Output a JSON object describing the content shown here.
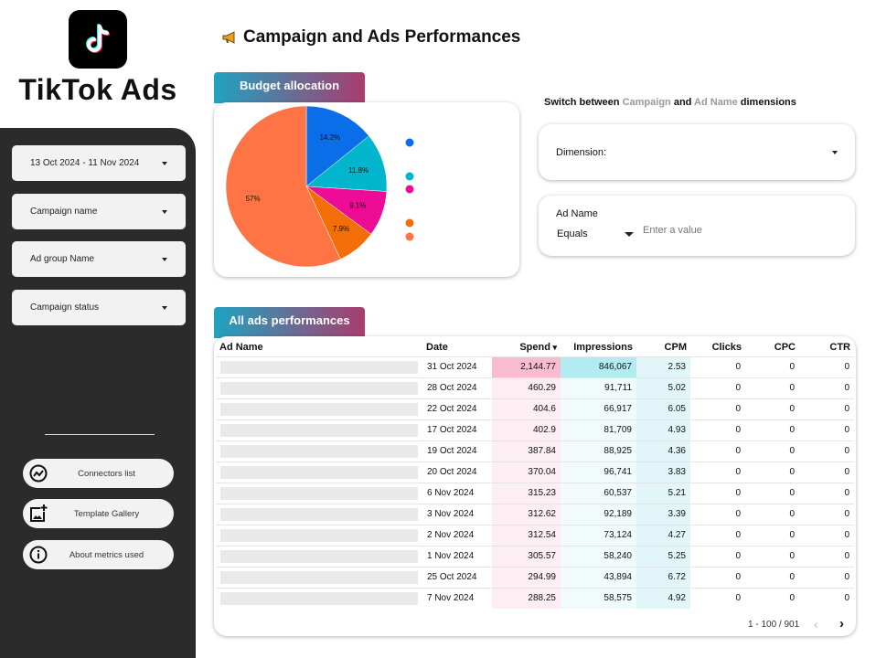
{
  "brand": {
    "name": "TikTok Ads",
    "logo_icon": "tiktok-logo-icon"
  },
  "sidebar": {
    "filters": [
      {
        "label": "13 Oct 2024 - 11 Nov 2024"
      },
      {
        "label": "Campaign name"
      },
      {
        "label": "Ad group Name"
      },
      {
        "label": "Campaign status"
      }
    ],
    "links": [
      {
        "label": "Connectors list",
        "icon": "chart-circle-icon"
      },
      {
        "label": "Template Gallery",
        "icon": "add-image-icon"
      },
      {
        "label": "About metrics used",
        "icon": "info-icon"
      }
    ]
  },
  "header": {
    "title": "Campaign and Ads Performances",
    "icon": "megaphone-icon"
  },
  "budget": {
    "tab_label": "Budget allocation"
  },
  "chart_data": {
    "type": "pie",
    "values": [
      14.2,
      11.8,
      9.1,
      7.9,
      57
    ],
    "labels": [
      "14.2%",
      "11.8%",
      "9.1%",
      "7.9%",
      "57%"
    ],
    "colors": [
      "#0a6ee8",
      "#00b5cc",
      "#ee0b96",
      "#f46d07",
      "#fe7444"
    ],
    "legend": "right"
  },
  "switcher": {
    "prefix": "Switch between ",
    "opt1": "Campaign",
    "mid": " and ",
    "opt2": "Ad Name",
    "suffix": " dimensions",
    "dimension_label": "Dimension:",
    "adname_label": "Ad Name",
    "operator": "Equals",
    "placeholder": "Enter a value"
  },
  "table": {
    "tab_label": "All ads performances",
    "columns": [
      "Ad Name",
      "Date",
      "Spend",
      "Impressions",
      "CPM",
      "Clicks",
      "CPC",
      "CTR"
    ],
    "rows": [
      [
        "",
        "31 Oct 2024",
        "2,144.77",
        "846,067",
        "2.53",
        "0",
        "0",
        "0"
      ],
      [
        "",
        "28 Oct 2024",
        "460.29",
        "91,711",
        "5.02",
        "0",
        "0",
        "0"
      ],
      [
        "",
        "22 Oct 2024",
        "404.6",
        "66,917",
        "6.05",
        "0",
        "0",
        "0"
      ],
      [
        "",
        "17 Oct 2024",
        "402.9",
        "81,709",
        "4.93",
        "0",
        "0",
        "0"
      ],
      [
        "",
        "19 Oct 2024",
        "387.84",
        "88,925",
        "4.36",
        "0",
        "0",
        "0"
      ],
      [
        "",
        "20 Oct 2024",
        "370.04",
        "96,741",
        "3.83",
        "0",
        "0",
        "0"
      ],
      [
        "",
        "6 Nov 2024",
        "315.23",
        "60,537",
        "5.21",
        "0",
        "0",
        "0"
      ],
      [
        "",
        "3 Nov 2024",
        "312.62",
        "92,189",
        "3.39",
        "0",
        "0",
        "0"
      ],
      [
        "",
        "2 Nov 2024",
        "312.54",
        "73,124",
        "4.27",
        "0",
        "0",
        "0"
      ],
      [
        "",
        "1 Nov 2024",
        "305.57",
        "58,240",
        "5.25",
        "0",
        "0",
        "0"
      ],
      [
        "",
        "25 Oct 2024",
        "294.99",
        "43,894",
        "6.72",
        "0",
        "0",
        "0"
      ],
      [
        "",
        "7 Nov 2024",
        "288.25",
        "58,575",
        "4.92",
        "0",
        "0",
        "0"
      ]
    ],
    "pagination": "1 - 100 / 901",
    "accent_spend": "#f8bbd0",
    "accent_impr": "#b2ebf2"
  }
}
